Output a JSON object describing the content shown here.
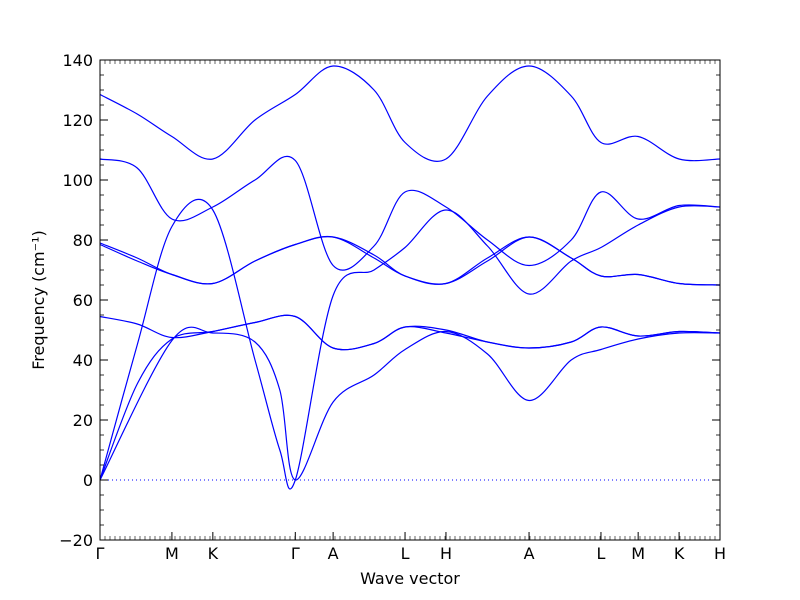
{
  "chart_data": {
    "type": "line",
    "title": "",
    "xlabel": "Wave vector",
    "ylabel": "Frequency (cm⁻¹)",
    "ylim": [
      -20,
      140
    ],
    "xlim": [
      0,
      1
    ],
    "grid": false,
    "legend": "none",
    "line_color": "#0000ff",
    "zero_line_style": "dotted",
    "yticks": [
      -20,
      0,
      20,
      40,
      60,
      80,
      100,
      120,
      140
    ],
    "xticks": [
      {
        "label": "Γ",
        "x": 0.0
      },
      {
        "label": "M",
        "x": 0.116
      },
      {
        "label": "K",
        "x": 0.182
      },
      {
        "label": "Γ",
        "x": 0.315
      },
      {
        "label": "A",
        "x": 0.376
      },
      {
        "label": "L",
        "x": 0.492
      },
      {
        "label": "H",
        "x": 0.558
      },
      {
        "label": "A",
        "x": 0.692
      },
      {
        "label": "L",
        "x": 0.808
      },
      {
        "label": "M",
        "x": 0.868
      },
      {
        "label": "K",
        "x": 0.934
      },
      {
        "label": "H",
        "x": 1.0
      }
    ],
    "series": [
      {
        "x": [
          0,
          0.116,
          0.182,
          0.25,
          0.29,
          0.315,
          0.376,
          0.442,
          0.492,
          0.558,
          0.625,
          0.692,
          0.76,
          0.808,
          0.868,
          0.934,
          1.0
        ],
        "y": [
          0,
          46.5,
          49,
          46,
          30,
          0,
          26,
          35,
          43.5,
          49.5,
          42,
          26.5,
          40,
          43.5,
          47,
          49,
          49
        ]
      },
      {
        "x": [
          0,
          0.06,
          0.116,
          0.182,
          0.25,
          0.315,
          0.376,
          0.442,
          0.492,
          0.558,
          0.625,
          0.692,
          0.76,
          0.808,
          0.868,
          0.934,
          1.0
        ],
        "y": [
          0,
          32,
          47,
          49.5,
          52.5,
          54.5,
          44,
          45.5,
          51,
          50,
          46,
          44,
          46,
          51,
          48,
          49.5,
          49
        ]
      },
      {
        "x": [
          0,
          0.06,
          0.116,
          0.182,
          0.25,
          0.315,
          0.376,
          0.442,
          0.492,
          0.558,
          0.625,
          0.692,
          0.76,
          0.808,
          0.868,
          0.934,
          1.0
        ],
        "y": [
          54.5,
          52,
          47.5,
          49.5,
          52.5,
          54.5,
          44,
          45.5,
          51,
          49,
          46,
          44,
          46,
          51,
          48,
          49.5,
          49
        ]
      },
      {
        "x": [
          0,
          0.06,
          0.116,
          0.182,
          0.25,
          0.315,
          0.376,
          0.442,
          0.492,
          0.558,
          0.625,
          0.692,
          0.76,
          0.808,
          0.868,
          0.934,
          1.0
        ],
        "y": [
          78.5,
          73,
          68.5,
          65.5,
          73,
          78.5,
          81,
          75,
          68,
          65.5,
          74,
          81,
          74,
          68,
          68.5,
          65.5,
          65
        ]
      },
      {
        "x": [
          0,
          0.06,
          0.116,
          0.182,
          0.25,
          0.315,
          0.376,
          0.442,
          0.492,
          0.558,
          0.625,
          0.692,
          0.76,
          0.808,
          0.868,
          0.934,
          1.0
        ],
        "y": [
          79,
          74,
          68.5,
          65.5,
          73,
          78.5,
          81,
          74,
          68,
          65.5,
          73,
          81,
          74,
          68,
          68.5,
          65.5,
          65
        ]
      },
      {
        "x": [
          0,
          0.06,
          0.116,
          0.182,
          0.25,
          0.29,
          0.315,
          0.376,
          0.442,
          0.492,
          0.558,
          0.625,
          0.692,
          0.76,
          0.808,
          0.868,
          0.934,
          1.0
        ],
        "y": [
          0,
          45,
          84.5,
          90,
          40,
          10,
          0,
          61.5,
          70,
          77.5,
          90,
          78,
          62,
          73,
          77.5,
          85,
          91,
          91
        ]
      },
      {
        "x": [
          0,
          0.06,
          0.116,
          0.182,
          0.25,
          0.315,
          0.376,
          0.442,
          0.492,
          0.558,
          0.625,
          0.692,
          0.76,
          0.808,
          0.868,
          0.934,
          1.0
        ],
        "y": [
          107,
          104,
          87,
          91,
          100,
          106.5,
          71.5,
          78,
          96,
          91,
          80,
          71.5,
          80,
          96,
          87,
          91.5,
          91
        ]
      },
      {
        "x": [
          0,
          0.06,
          0.116,
          0.182,
          0.25,
          0.315,
          0.376,
          0.442,
          0.492,
          0.558,
          0.625,
          0.692,
          0.76,
          0.808,
          0.868,
          0.934,
          1.0
        ],
        "y": [
          128.5,
          122,
          114.5,
          107,
          120,
          128.5,
          138,
          130,
          112.5,
          107,
          128,
          138,
          128,
          112.5,
          114.5,
          107,
          107
        ]
      }
    ]
  }
}
